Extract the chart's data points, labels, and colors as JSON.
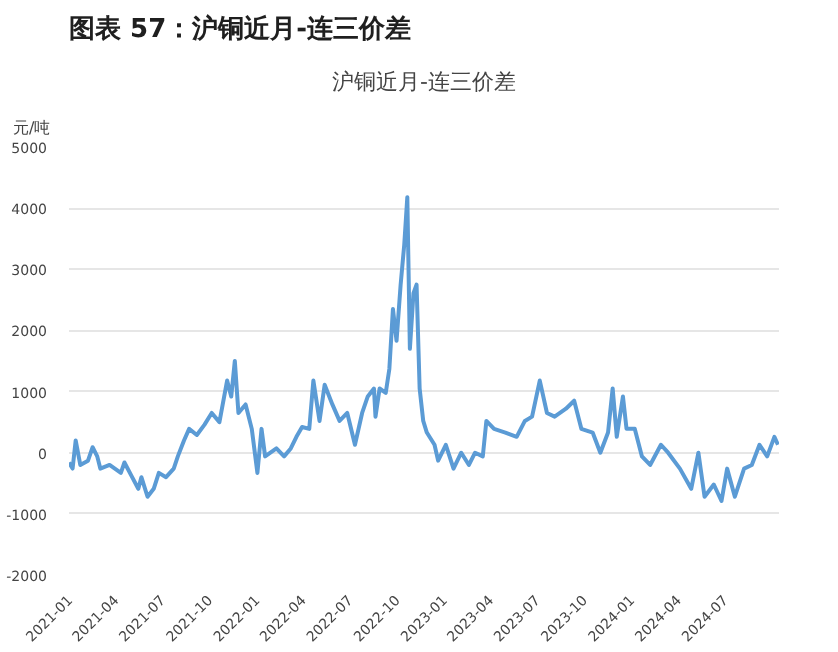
{
  "chart_data": {
    "type": "line",
    "title": "图表 57：沪铜近月-连三价差",
    "subtitle": "沪铜近月-连三价差",
    "ylabel": "元/吨",
    "x": [
      "2021-01-01",
      "2021-01-08",
      "2021-01-14",
      "2021-01-23",
      "2021-02-07",
      "2021-02-16",
      "2021-02-25",
      "2021-03-03",
      "2021-03-21",
      "2021-04-12",
      "2021-04-19",
      "2021-05-04",
      "2021-05-16",
      "2021-05-22",
      "2021-06-03",
      "2021-06-15",
      "2021-06-25",
      "2021-07-09",
      "2021-07-24",
      "2021-08-01",
      "2021-08-13",
      "2021-08-23",
      "2021-09-07",
      "2021-09-22",
      "2021-10-06",
      "2021-10-21",
      "2021-11-05",
      "2021-11-13",
      "2021-11-20",
      "2021-11-27",
      "2021-12-11",
      "2021-12-23",
      "2022-01-03",
      "2022-01-11",
      "2022-01-18",
      "2022-02-09",
      "2022-02-24",
      "2022-03-09",
      "2022-03-20",
      "2022-03-31",
      "2022-04-14",
      "2022-04-22",
      "2022-05-04",
      "2022-05-14",
      "2022-05-29",
      "2022-06-12",
      "2022-06-27",
      "2022-07-12",
      "2022-07-26",
      "2022-08-06",
      "2022-08-18",
      "2022-08-21",
      "2022-08-29",
      "2022-09-10",
      "2022-09-17",
      "2022-09-24",
      "2022-10-01",
      "2022-10-09",
      "2022-10-16",
      "2022-10-22",
      "2022-10-27",
      "2022-11-03",
      "2022-11-09",
      "2022-11-15",
      "2022-11-22",
      "2022-11-29",
      "2022-12-14",
      "2022-12-21",
      "2023-01-05",
      "2023-01-20",
      "2023-02-04",
      "2023-02-19",
      "2023-03-03",
      "2023-03-18",
      "2023-03-25",
      "2023-04-09",
      "2023-05-01",
      "2023-05-23",
      "2023-06-08",
      "2023-06-22",
      "2023-07-07",
      "2023-07-21",
      "2023-08-05",
      "2023-08-27",
      "2023-09-12",
      "2023-09-26",
      "2023-10-18",
      "2023-11-02",
      "2023-11-17",
      "2023-11-26",
      "2023-12-04",
      "2023-12-16",
      "2023-12-23",
      "2024-01-08",
      "2024-01-22",
      "2024-02-07",
      "2024-02-28",
      "2024-03-13",
      "2024-04-05",
      "2024-04-27",
      "2024-05-11",
      "2024-05-23",
      "2024-06-10",
      "2024-06-25",
      "2024-07-06",
      "2024-07-21",
      "2024-08-08",
      "2024-08-23",
      "2024-09-07",
      "2024-09-22",
      "2024-10-06",
      "2024-10-13"
    ],
    "series": [
      {
        "color": "#5b9bd5",
        "values": [
          -160,
          -260,
          200,
          -200,
          -130,
          90,
          -60,
          -260,
          -200,
          -330,
          -160,
          -400,
          -590,
          -400,
          -720,
          -590,
          -330,
          -400,
          -260,
          -60,
          200,
          390,
          290,
          460,
          650,
          500,
          1180,
          920,
          1500,
          650,
          790,
          390,
          -330,
          390,
          -60,
          70,
          -60,
          70,
          260,
          420,
          390,
          1180,
          520,
          1110,
          790,
          520,
          650,
          130,
          650,
          920,
          1050,
          590,
          1050,
          980,
          1370,
          2350,
          1830,
          2750,
          3400,
          4180,
          1700,
          2610,
          2750,
          1050,
          520,
          330,
          130,
          -130,
          130,
          -260,
          0,
          -200,
          0,
          -60,
          520,
          390,
          330,
          260,
          520,
          590,
          1180,
          650,
          590,
          720,
          850,
          390,
          330,
          0,
          330,
          1050,
          260,
          920,
          390,
          390,
          -60,
          -200,
          130,
          0,
          -260,
          -590,
          0,
          -720,
          -520,
          -790,
          -260,
          -720,
          -260,
          -200,
          130,
          -60,
          260,
          130
        ]
      }
    ],
    "xlim": [
      "2021-01-01",
      "2024-10-15"
    ],
    "xticks": [
      "2021-01",
      "2021-04",
      "2021-07",
      "2021-10",
      "2022-01",
      "2022-04",
      "2022-07",
      "2022-10",
      "2023-01",
      "2023-04",
      "2023-07",
      "2023-10",
      "2024-01",
      "2024-04",
      "2024-07"
    ],
    "ylim": [
      -2000,
      5000
    ],
    "yticks": [
      -2000,
      -1000,
      0,
      1000,
      2000,
      3000,
      4000,
      5000
    ],
    "grid": "y",
    "marker": "none",
    "line_style": "solid"
  }
}
